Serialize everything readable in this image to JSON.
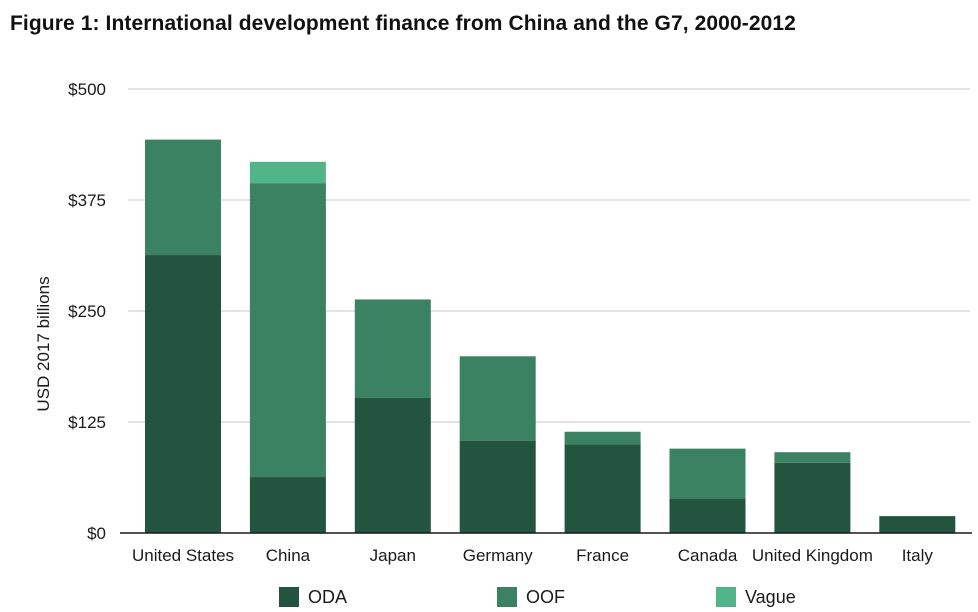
{
  "chart_data": {
    "type": "bar",
    "stacked": true,
    "title": "Figure 1: International development finance from China and the G7, 2000-2012",
    "ylabel": "USD 2017 billions",
    "xlabel": "",
    "ylim": [
      0,
      500
    ],
    "yticks": [
      "$0",
      "$125",
      "$250",
      "$375",
      "$500"
    ],
    "ytick_values": [
      0,
      125,
      250,
      375,
      500
    ],
    "grid": true,
    "legend_position": "bottom",
    "categories": [
      "United States",
      "China",
      "Japan",
      "Germany",
      "France",
      "Canada",
      "United Kingdom",
      "Italy"
    ],
    "series": [
      {
        "name": "ODA",
        "color": "#22543f",
        "values": [
          313,
          63,
          152,
          104,
          100,
          39,
          79,
          19
        ]
      },
      {
        "name": "OOF",
        "color": "#3a8262",
        "values": [
          130,
          331,
          111,
          95,
          14,
          56,
          12,
          0
        ]
      },
      {
        "name": "Vague",
        "color": "#52b58a",
        "values": [
          0,
          24,
          0,
          0,
          0,
          0,
          0,
          0
        ]
      }
    ]
  }
}
